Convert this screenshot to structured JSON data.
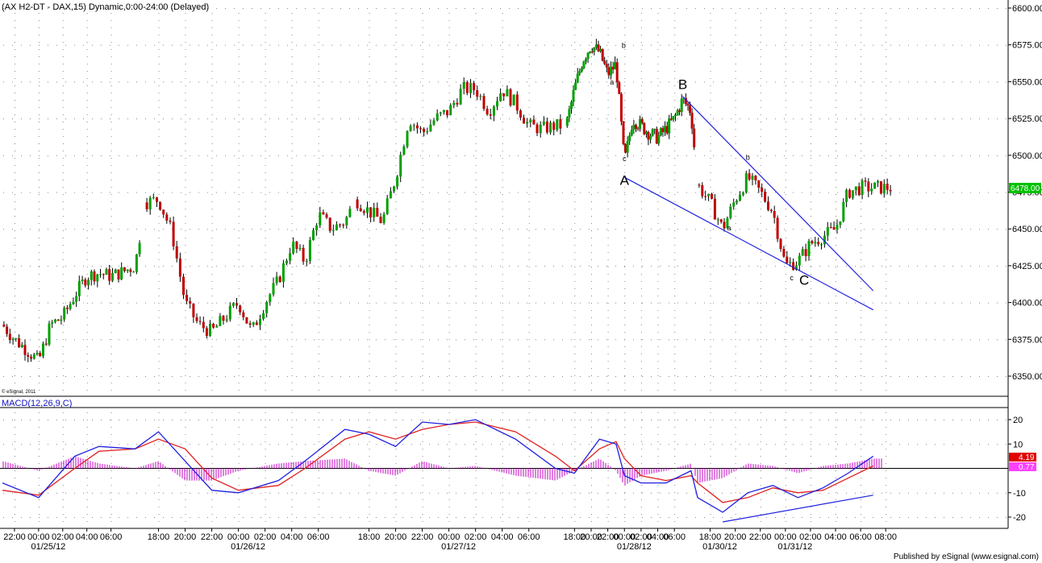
{
  "title": "(AX H2-DT - DAX,15) Dynamic,0:00-24:00 (Delayed)",
  "copyright": "© eSignal, 2011",
  "footer": "Published by eSignal (www.esignal.com)",
  "colors": {
    "up": "#00a000",
    "down": "#c00000",
    "trendline": "#2020e0",
    "macd": "#2020e0",
    "signal": "#e02020",
    "hist": "#c000c0",
    "last_badge": "#00c000"
  },
  "price": {
    "y_ticks": [
      "6600.00",
      "6575.00",
      "6550.00",
      "6525.00",
      "6500.00",
      "6475.00",
      "6450.00",
      "6425.00",
      "6400.00",
      "6375.00",
      "6350.00"
    ],
    "last_value": "6478.00"
  },
  "macd": {
    "label": "MACD(12,26,9,C)",
    "y_ticks": [
      "20",
      "10",
      "-10",
      "-20"
    ],
    "macd_value": "4.19",
    "signal_value": "0.77"
  },
  "time_labels": [
    "22:00",
    "00:00",
    "02:00",
    "04:00",
    "06:00",
    "18:00",
    "20:00",
    "22:00",
    "00:00",
    "02:00",
    "04:00",
    "06:00",
    "18:00",
    "20:00",
    "22:00",
    "00:00",
    "02:00",
    "04:00",
    "06:00",
    "18:00",
    "20:00",
    "22:00",
    "00:00",
    "02:00",
    "04:00",
    "06:00",
    "18:00",
    "20:00",
    "22:00",
    "00:00",
    "02:00",
    "04:00",
    "06:00",
    "08:00"
  ],
  "date_labels": [
    "01/25/12",
    "01/26/12",
    "01/27/12",
    "01/28/12",
    "01/30/12",
    "01/31/12"
  ],
  "waves": [
    {
      "label": "A",
      "kind": "major",
      "time": "01/28/12 00:00",
      "price": 6480
    },
    {
      "label": "B",
      "kind": "major",
      "time": "01/28/12 07:00",
      "price": 6545
    },
    {
      "label": "C",
      "kind": "major",
      "time": "01/31/12 01:30",
      "price": 6412
    },
    {
      "label": "a",
      "kind": "minor",
      "time": "01/27/12 22:30",
      "price": 6548
    },
    {
      "label": "b",
      "kind": "minor",
      "time": "01/27/12 23:55",
      "price": 6573
    },
    {
      "label": "c",
      "kind": "minor",
      "time": "01/28/12 00:00",
      "price": 6496
    },
    {
      "label": "a",
      "kind": "minor",
      "time": "01/30/12 19:30",
      "price": 6449
    },
    {
      "label": "b",
      "kind": "minor",
      "time": "01/30/12 21:00",
      "price": 6497
    },
    {
      "label": "c",
      "kind": "minor",
      "time": "01/31/12 00:30",
      "price": 6415
    }
  ],
  "chart_data": {
    "type": "candlestick",
    "interval": "15 min",
    "ylim": [
      6340,
      6605
    ],
    "macd_ylim": [
      -25,
      25
    ],
    "trendlines": [
      {
        "name": "lower channel",
        "from": {
          "time": "01/28/12 00:00",
          "price": 6485
        },
        "to": {
          "time": "01/31/12 07:00",
          "price": 6395
        }
      },
      {
        "name": "upper channel",
        "from": {
          "time": "01/28/12 07:00",
          "price": 6540
        },
        "to": {
          "time": "01/31/12 07:00",
          "price": 6408
        }
      },
      {
        "name": "macd divergence",
        "from": {
          "time": "01/30/12 19:00",
          "price": -22
        },
        "to": {
          "time": "01/31/12 07:00",
          "price": -11
        }
      }
    ],
    "closes": [
      [
        "01/24/12 21:00",
        6385
      ],
      [
        "01/24/12 22:00",
        6375
      ],
      [
        "01/24/12 23:00",
        6368
      ],
      [
        "01/25/12 00:00",
        6360
      ],
      [
        "01/25/12 01:00",
        6385
      ],
      [
        "01/25/12 02:00",
        6390
      ],
      [
        "01/25/12 03:00",
        6405
      ],
      [
        "01/25/12 04:00",
        6418
      ],
      [
        "01/25/12 05:00",
        6420
      ],
      [
        "01/25/12 06:00",
        6418
      ],
      [
        "01/25/12 07:00",
        6421
      ],
      [
        "01/25/12 08:00",
        6425
      ],
      [
        "01/25/12 17:00",
        6468
      ],
      [
        "01/25/12 18:00",
        6470
      ],
      [
        "01/25/12 19:00",
        6448
      ],
      [
        "01/25/12 20:00",
        6400
      ],
      [
        "01/25/12 21:00",
        6385
      ],
      [
        "01/25/12 22:00",
        6380
      ],
      [
        "01/25/12 23:00",
        6390
      ],
      [
        "01/26/12 00:00",
        6400
      ],
      [
        "01/26/12 01:00",
        6380
      ],
      [
        "01/26/12 02:00",
        6400
      ],
      [
        "01/26/12 03:00",
        6415
      ],
      [
        "01/26/12 04:00",
        6440
      ],
      [
        "01/26/12 05:00",
        6428
      ],
      [
        "01/26/12 06:00",
        6460
      ],
      [
        "01/26/12 07:00",
        6450
      ],
      [
        "01/26/12 08:00",
        6455
      ],
      [
        "01/26/12 17:00",
        6470
      ],
      [
        "01/26/12 18:00",
        6462
      ],
      [
        "01/26/12 19:00",
        6455
      ],
      [
        "01/26/12 20:00",
        6485
      ],
      [
        "01/26/12 21:00",
        6525
      ],
      [
        "01/26/12 22:00",
        6515
      ],
      [
        "01/26/12 23:00",
        6525
      ],
      [
        "01/27/12 00:00",
        6530
      ],
      [
        "01/27/12 01:00",
        6545
      ],
      [
        "01/27/12 02:00",
        6545
      ],
      [
        "01/27/12 03:00",
        6530
      ],
      [
        "01/27/12 04:00",
        6545
      ],
      [
        "01/27/12 05:00",
        6535
      ],
      [
        "01/27/12 06:00",
        6520
      ],
      [
        "01/27/12 07:00",
        6518
      ],
      [
        "01/27/12 08:00",
        6520
      ],
      [
        "01/27/12 17:00",
        6520
      ],
      [
        "01/27/12 18:00",
        6545
      ],
      [
        "01/27/12 19:00",
        6565
      ],
      [
        "01/27/12 20:00",
        6575
      ],
      [
        "01/27/12 21:00",
        6570
      ],
      [
        "01/27/12 22:00",
        6555
      ],
      [
        "01/27/12 23:00",
        6562
      ],
      [
        "01/28/12 00:00",
        6495
      ],
      [
        "01/28/12 01:00",
        6525
      ],
      [
        "01/28/12 02:00",
        6520
      ],
      [
        "01/28/12 03:00",
        6515
      ],
      [
        "01/28/12 04:00",
        6512
      ],
      [
        "01/28/12 05:00",
        6518
      ],
      [
        "01/28/12 06:00",
        6525
      ],
      [
        "01/28/12 07:00",
        6538
      ],
      [
        "01/28/12 08:00",
        6530
      ],
      [
        "01/30/12 17:00",
        6480
      ],
      [
        "01/30/12 18:00",
        6468
      ],
      [
        "01/30/12 19:00",
        6450
      ],
      [
        "01/30/12 20:00",
        6470
      ],
      [
        "01/30/12 21:00",
        6485
      ],
      [
        "01/30/12 22:00",
        6475
      ],
      [
        "01/30/12 23:00",
        6462
      ],
      [
        "01/31/12 00:00",
        6425
      ],
      [
        "01/31/12 01:00",
        6428
      ],
      [
        "01/31/12 02:00",
        6440
      ],
      [
        "01/31/12 03:00",
        6445
      ],
      [
        "01/31/12 04:00",
        6450
      ],
      [
        "01/31/12 05:00",
        6475
      ],
      [
        "01/31/12 06:00",
        6478
      ],
      [
        "01/31/12 07:00",
        6478
      ]
    ],
    "macd_points": [
      [
        "01/24/12 21:00",
        -6
      ],
      [
        "01/25/12 00:00",
        -12
      ],
      [
        "01/25/12 03:00",
        5
      ],
      [
        "01/25/12 05:00",
        9
      ],
      [
        "01/25/12 08:00",
        8
      ],
      [
        "01/25/12 18:00",
        15
      ],
      [
        "01/25/12 20:00",
        3
      ],
      [
        "01/25/12 22:00",
        -9
      ],
      [
        "01/26/12 00:00",
        -10
      ],
      [
        "01/26/12 03:00",
        -5
      ],
      [
        "01/26/12 05:00",
        3
      ],
      [
        "01/26/12 08:00",
        16
      ],
      [
        "01/26/12 18:00",
        14
      ],
      [
        "01/26/12 20:00",
        9
      ],
      [
        "01/26/12 22:00",
        19
      ],
      [
        "01/27/12 00:00",
        18
      ],
      [
        "01/27/12 02:00",
        20
      ],
      [
        "01/27/12 05:00",
        12
      ],
      [
        "01/27/12 08:00",
        0
      ],
      [
        "01/27/12 18:00",
        -2
      ],
      [
        "01/27/12 21:00",
        12
      ],
      [
        "01/27/12 23:00",
        10
      ],
      [
        "01/28/12 00:00",
        -3
      ],
      [
        "01/28/12 02:00",
        -6
      ],
      [
        "01/28/12 05:00",
        -6
      ],
      [
        "01/28/12 08:00",
        -1
      ],
      [
        "01/30/12 17:00",
        -12
      ],
      [
        "01/30/12 19:00",
        -18
      ],
      [
        "01/30/12 21:00",
        -10
      ],
      [
        "01/30/12 23:00",
        -7
      ],
      [
        "01/31/12 01:00",
        -12
      ],
      [
        "01/31/12 03:00",
        -8
      ],
      [
        "01/31/12 05:00",
        -2
      ],
      [
        "01/31/12 07:00",
        5
      ]
    ],
    "signal_points": [
      [
        "01/24/12 21:00",
        -9
      ],
      [
        "01/25/12 00:00",
        -11
      ],
      [
        "01/25/12 03:00",
        0
      ],
      [
        "01/25/12 05:00",
        7
      ],
      [
        "01/25/12 08:00",
        8
      ],
      [
        "01/25/12 18:00",
        12
      ],
      [
        "01/25/12 20:00",
        8
      ],
      [
        "01/25/12 22:00",
        -4
      ],
      [
        "01/26/12 00:00",
        -9
      ],
      [
        "01/26/12 03:00",
        -7
      ],
      [
        "01/26/12 05:00",
        0
      ],
      [
        "01/26/12 08:00",
        12
      ],
      [
        "01/26/12 18:00",
        15
      ],
      [
        "01/26/12 20:00",
        12
      ],
      [
        "01/26/12 22:00",
        16
      ],
      [
        "01/27/12 00:00",
        18
      ],
      [
        "01/27/12 02:00",
        19
      ],
      [
        "01/27/12 05:00",
        15
      ],
      [
        "01/27/12 08:00",
        5
      ],
      [
        "01/27/12 18:00",
        -1
      ],
      [
        "01/27/12 21:00",
        8
      ],
      [
        "01/27/12 23:00",
        11
      ],
      [
        "01/28/12 00:00",
        4
      ],
      [
        "01/28/12 02:00",
        -3
      ],
      [
        "01/28/12 05:00",
        -5
      ],
      [
        "01/28/12 08:00",
        -3
      ],
      [
        "01/30/12 17:00",
        -6
      ],
      [
        "01/30/12 19:00",
        -14
      ],
      [
        "01/30/12 21:00",
        -12
      ],
      [
        "01/30/12 23:00",
        -8
      ],
      [
        "01/31/12 01:00",
        -10
      ],
      [
        "01/31/12 03:00",
        -9
      ],
      [
        "01/31/12 05:00",
        -4
      ],
      [
        "01/31/12 07:00",
        1
      ]
    ]
  }
}
